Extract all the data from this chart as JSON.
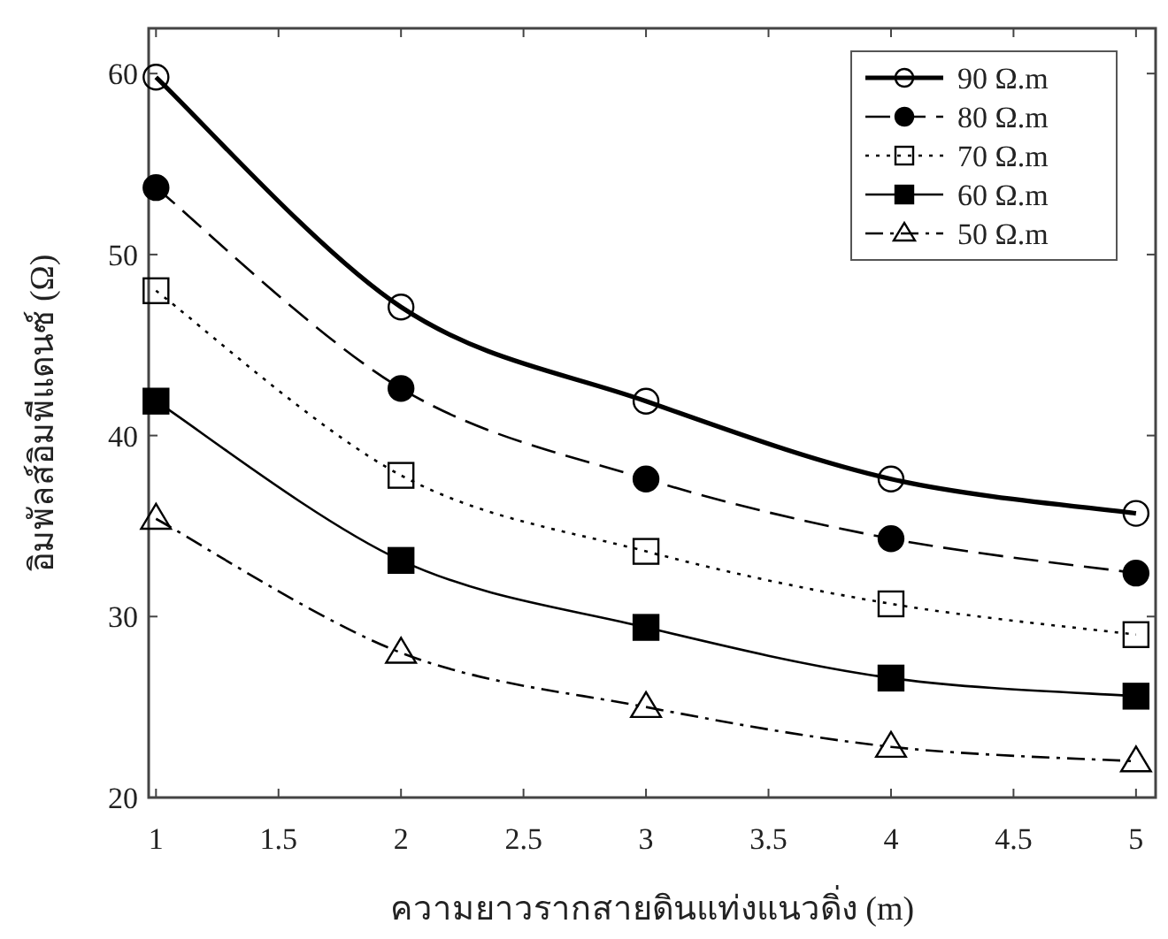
{
  "chart_data": {
    "type": "line",
    "xlabel": "ความยาวรากสายดินแท่งแนวดิ่ง (m)",
    "ylabel": "อิมพัลส์อิมพีแดนซ์ (Ω)",
    "x": [
      1,
      2,
      3,
      4,
      5
    ],
    "xlim": [
      0.97,
      5.08
    ],
    "xticks": [
      1,
      1.5,
      2,
      2.5,
      3,
      3.5,
      4,
      4.5,
      5
    ],
    "ylim": [
      20,
      62.5
    ],
    "yticks": [
      20,
      30,
      40,
      50,
      60
    ],
    "grid": false,
    "legend": "top right",
    "series": [
      {
        "name": "90 Ω.m",
        "color": "#000000",
        "values": [
          59.8,
          47.1,
          41.9,
          37.6,
          35.7
        ],
        "marker": "circle",
        "line_style": "solid"
      },
      {
        "name": "80 Ω.m",
        "color": "#000000",
        "values": [
          53.7,
          42.6,
          37.6,
          34.3,
          32.4
        ],
        "marker": "circle",
        "line_style": "dashed"
      },
      {
        "name": "70 Ω.m",
        "color": "#000000",
        "values": [
          48.0,
          37.8,
          33.6,
          30.7,
          29.0
        ],
        "marker": "square",
        "line_style": "dotted"
      },
      {
        "name": "60 Ω.m",
        "color": "#000000",
        "values": [
          41.9,
          33.1,
          29.4,
          26.6,
          25.6
        ],
        "marker": "square",
        "line_style": "solid"
      },
      {
        "name": "50 Ω.m",
        "color": "#000000",
        "values": [
          35.4,
          28.0,
          25.0,
          22.8,
          22.0
        ],
        "marker": "triangle",
        "line_style": "dashdot"
      }
    ]
  }
}
